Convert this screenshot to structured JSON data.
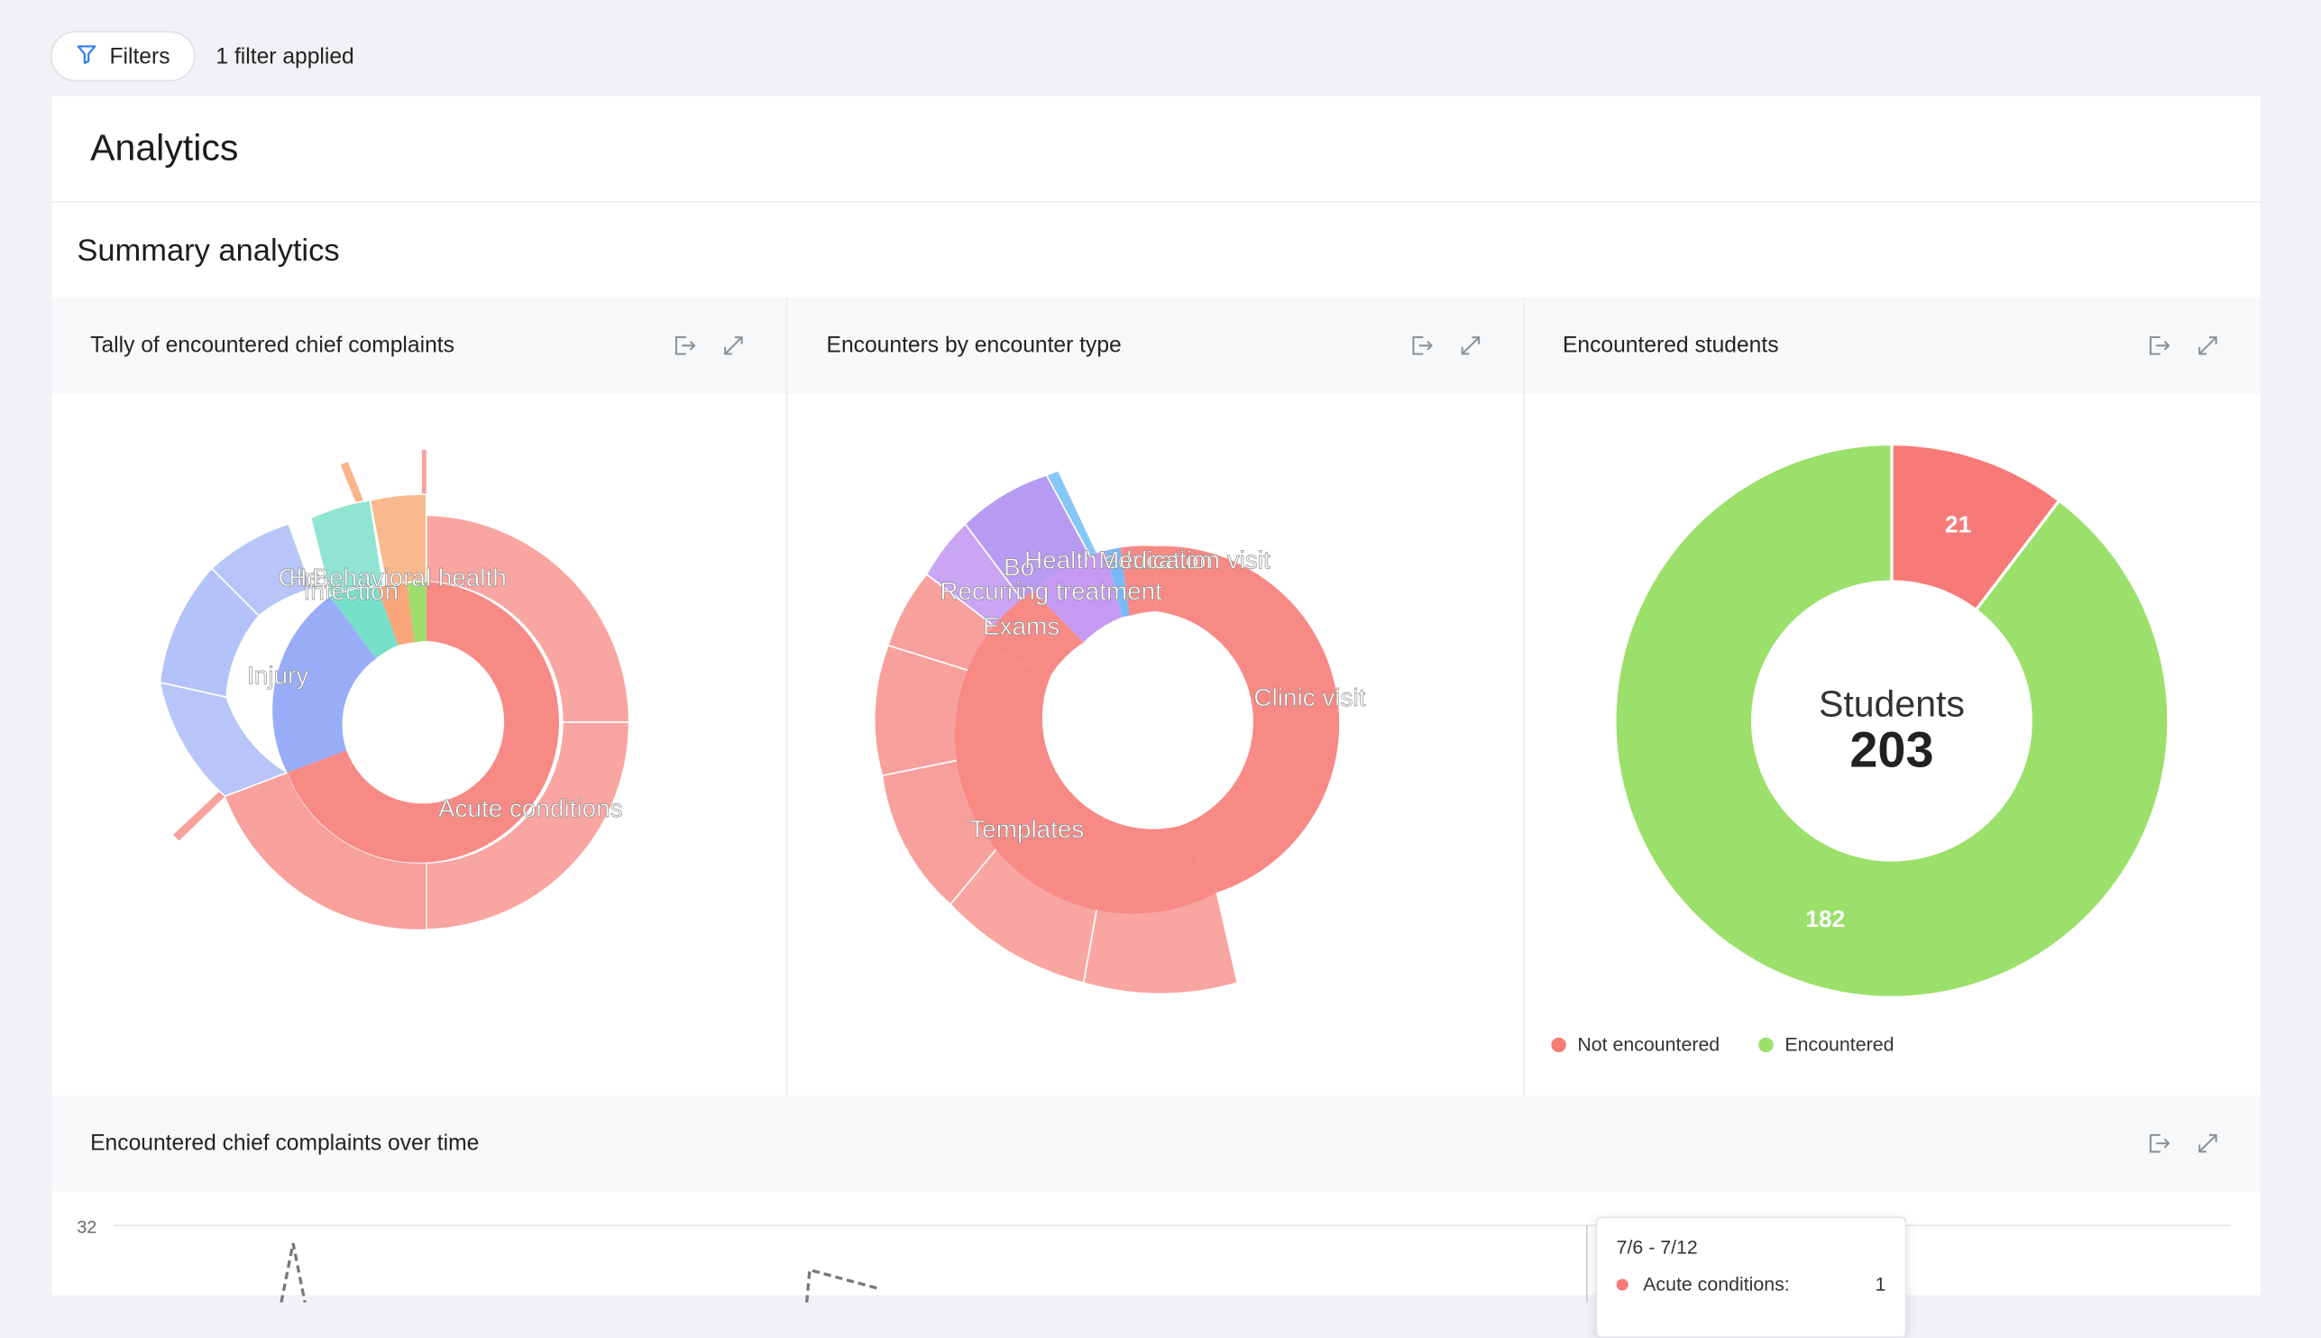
{
  "toolbar": {
    "filters_label": "Filters",
    "filter_count": "1 filter applied",
    "filter_icon": "funnel-icon"
  },
  "page": {
    "title": "Analytics",
    "section_title": "Summary analytics"
  },
  "cards": [
    {
      "title": "Tally of encountered chief complaints",
      "labels": [
        "Acute conditions",
        "Injury",
        "Infection",
        "Ch",
        "He",
        "Behavioral health"
      ]
    },
    {
      "title": "Encounters by encounter type",
      "labels": [
        "Clinic visit",
        "Templates",
        "Exams",
        "Recurring treatment",
        "Bo",
        "Health education",
        "Medication visit"
      ]
    },
    {
      "title": "Encountered students",
      "center_label": "Students",
      "center_value": "203",
      "segments": [
        {
          "label": "Not encountered",
          "value": 21,
          "color": "#f87a78"
        },
        {
          "label": "Encountered",
          "value": 182,
          "color": "#9be06a"
        }
      ]
    }
  ],
  "timeline": {
    "title": "Encountered chief complaints over time",
    "y_max_label": "32",
    "tooltip": {
      "title": "7/6 - 7/12",
      "row_label": "Acute conditions:",
      "row_value": "1"
    }
  },
  "icons": {
    "export": "export-icon",
    "expand": "expand-icon"
  },
  "colors": {
    "acute": "#f78a87",
    "injury": "#98acf7",
    "infection": "#76e0c8",
    "behavioral": "#9ede6f",
    "exams": "#c69af2",
    "encountered": "#9be06a",
    "not_encountered": "#f87a78"
  }
}
